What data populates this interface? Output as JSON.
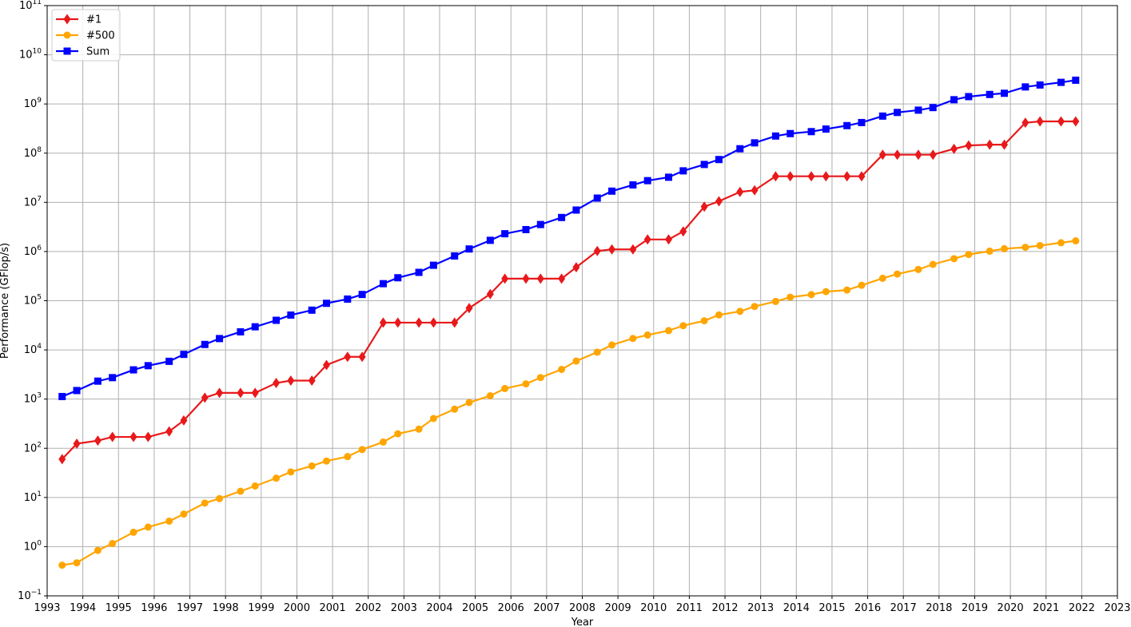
{
  "chart_data": {
    "type": "line",
    "xlabel": "Year",
    "ylabel": "Performance (GFlop/s)",
    "y_scale": "log",
    "xlim": [
      1993,
      2023
    ],
    "ylim": [
      0.1,
      100000000000
    ],
    "x_ticks": [
      "1993",
      "1994",
      "1995",
      "1996",
      "1997",
      "1998",
      "1999",
      "2000",
      "2001",
      "2002",
      "2003",
      "2004",
      "2005",
      "2006",
      "2007",
      "2008",
      "2009",
      "2010",
      "2011",
      "2012",
      "2013",
      "2014",
      "2015",
      "2016",
      "2017",
      "2018",
      "2019",
      "2020",
      "2021",
      "2022",
      "2023"
    ],
    "y_ticks": [
      {
        "value": 0.1,
        "base": "10",
        "exp": "−1"
      },
      {
        "value": 1,
        "base": "10",
        "exp": "0"
      },
      {
        "value": 10,
        "base": "10",
        "exp": "1"
      },
      {
        "value": 100,
        "base": "10",
        "exp": "2"
      },
      {
        "value": 1000,
        "base": "10",
        "exp": "3"
      },
      {
        "value": 10000,
        "base": "10",
        "exp": "4"
      },
      {
        "value": 100000,
        "base": "10",
        "exp": "5"
      },
      {
        "value": 1000000,
        "base": "10",
        "exp": "6"
      },
      {
        "value": 10000000,
        "base": "10",
        "exp": "7"
      },
      {
        "value": 100000000,
        "base": "10",
        "exp": "8"
      },
      {
        "value": 1000000000,
        "base": "10",
        "exp": "9"
      },
      {
        "value": 10000000000,
        "base": "10",
        "exp": "10"
      },
      {
        "value": 100000000000,
        "base": "10",
        "exp": "11"
      }
    ],
    "grid": true,
    "legend_position": "top-left",
    "x": [
      1993.42,
      1993.83,
      1994.42,
      1994.83,
      1995.42,
      1995.83,
      1996.42,
      1996.83,
      1997.42,
      1997.83,
      1998.42,
      1998.83,
      1999.42,
      1999.83,
      2000.42,
      2000.83,
      2001.42,
      2001.83,
      2002.42,
      2002.83,
      2003.42,
      2003.83,
      2004.42,
      2004.83,
      2005.42,
      2005.83,
      2006.42,
      2006.83,
      2007.42,
      2007.83,
      2008.42,
      2008.83,
      2009.42,
      2009.83,
      2010.42,
      2010.83,
      2011.42,
      2011.83,
      2012.42,
      2012.83,
      2013.42,
      2013.83,
      2014.42,
      2014.83,
      2015.42,
      2015.83,
      2016.42,
      2016.83,
      2017.42,
      2017.83,
      2018.42,
      2018.83,
      2019.42,
      2019.83,
      2020.42,
      2020.83,
      2021.42,
      2021.83
    ],
    "series": [
      {
        "name": "#1",
        "color": "#e8191b",
        "marker": "diamond",
        "values": [
          60,
          124,
          143,
          170,
          170,
          170,
          220,
          368,
          1068,
          1338,
          1338,
          1338,
          2121,
          2379,
          2379,
          4938,
          7226,
          7226,
          35860,
          35860,
          35860,
          35860,
          35860,
          70720,
          136800,
          280600,
          280600,
          280600,
          280600,
          478200,
          1026000,
          1105000,
          1105000,
          1759000,
          1759000,
          2566000,
          8162000,
          10510000,
          16320000,
          17590000,
          33860000,
          33860000,
          33860000,
          33860000,
          33860000,
          33860000,
          93010000,
          93010000,
          93010000,
          93010000,
          122300000,
          143500000,
          148600000,
          148600000,
          415500000,
          442000000,
          442000000,
          442000000
        ]
      },
      {
        "name": "#500",
        "color": "#ffa500",
        "marker": "circle",
        "values": [
          0.42,
          0.47,
          0.84,
          1.16,
          1.96,
          2.5,
          3.3,
          4.6,
          7.7,
          9.5,
          13.4,
          17.1,
          24.7,
          33.1,
          43.8,
          55.1,
          67.8,
          94.3,
          134,
          197,
          245,
          403,
          624,
          851,
          1170,
          1640,
          2040,
          2740,
          4010,
          5930,
          9000,
          12600,
          17100,
          20100,
          24700,
          31100,
          39100,
          51400,
          60800,
          76400,
          96600,
          118000,
          133000,
          153000,
          165000,
          206000,
          286000,
          349000,
          432000,
          548000,
          716000,
          871000,
          1020000,
          1140000,
          1220000,
          1320000,
          1510000,
          1650000
        ]
      },
      {
        "name": "Sum",
        "color": "#0000ff",
        "marker": "square",
        "values": [
          1128,
          1493,
          2317,
          2730,
          3930,
          4780,
          5860,
          8110,
          12900,
          17000,
          23300,
          29500,
          40000,
          51100,
          64300,
          88600,
          108000,
          134000,
          222000,
          293000,
          377000,
          526000,
          813000,
          1127000,
          1690000,
          2300000,
          2790000,
          3540000,
          4920000,
          6970000,
          12200000,
          16900000,
          22600000,
          27600000,
          32400000,
          43700000,
          58900000,
          74200000,
          123000000,
          162000000,
          223000000,
          250000000,
          274000000,
          309000000,
          363000000,
          419000000,
          567000000,
          672000000,
          749000000,
          845000000,
          1220000000,
          1410000000,
          1560000000,
          1650000000,
          2220000000,
          2430000000,
          2750000000,
          3040000000
        ]
      }
    ]
  }
}
